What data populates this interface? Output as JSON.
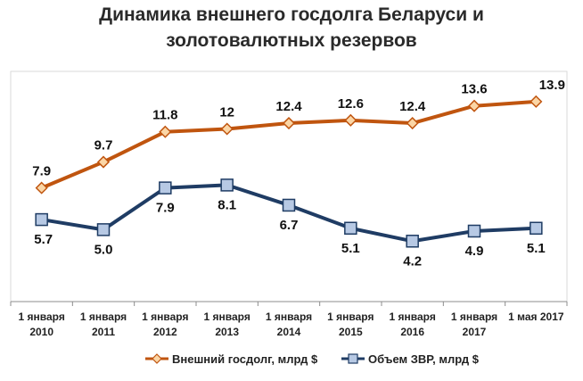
{
  "chart_data": {
    "type": "line",
    "title_lines": [
      "Динамика внешнего госдолга Беларуси и",
      "золотовалютных резервов"
    ],
    "categories": [
      [
        "1 января",
        "2010"
      ],
      [
        "1 января",
        "2011"
      ],
      [
        "1 января",
        "2012"
      ],
      [
        "1 января",
        "2013"
      ],
      [
        "1 января",
        "2014"
      ],
      [
        "1 января",
        "2015"
      ],
      [
        "1 января",
        "2016"
      ],
      [
        "1 января",
        "2017"
      ],
      [
        "1 мая 2017",
        ""
      ]
    ],
    "series": [
      {
        "name": "Внешний госдолг, млрд $",
        "color": "#C0550F",
        "marker": "diamond",
        "marker_fill": "#FBD6A6",
        "values": [
          7.9,
          9.7,
          11.8,
          12,
          12.4,
          12.6,
          12.4,
          13.6,
          13.9
        ],
        "labels": [
          "7.9",
          "9.7",
          "11.8",
          "12",
          "12.4",
          "12.6",
          "12.4",
          "13.6",
          "13.9"
        ]
      },
      {
        "name": "Объем ЗВР, млрд $",
        "color": "#1F3C64",
        "marker": "square",
        "marker_fill": "#B7C9E4",
        "values": [
          5.7,
          5.0,
          7.9,
          8.1,
          6.7,
          5.1,
          4.2,
          4.9,
          5.1
        ],
        "labels": [
          "5.7",
          "5.0",
          "7.9",
          "8.1",
          "6.7",
          "5.1",
          "4.2",
          "4.9",
          "5.1"
        ]
      }
    ],
    "ylim": [
      0,
      16
    ],
    "grid": false,
    "legend_position": "bottom"
  }
}
